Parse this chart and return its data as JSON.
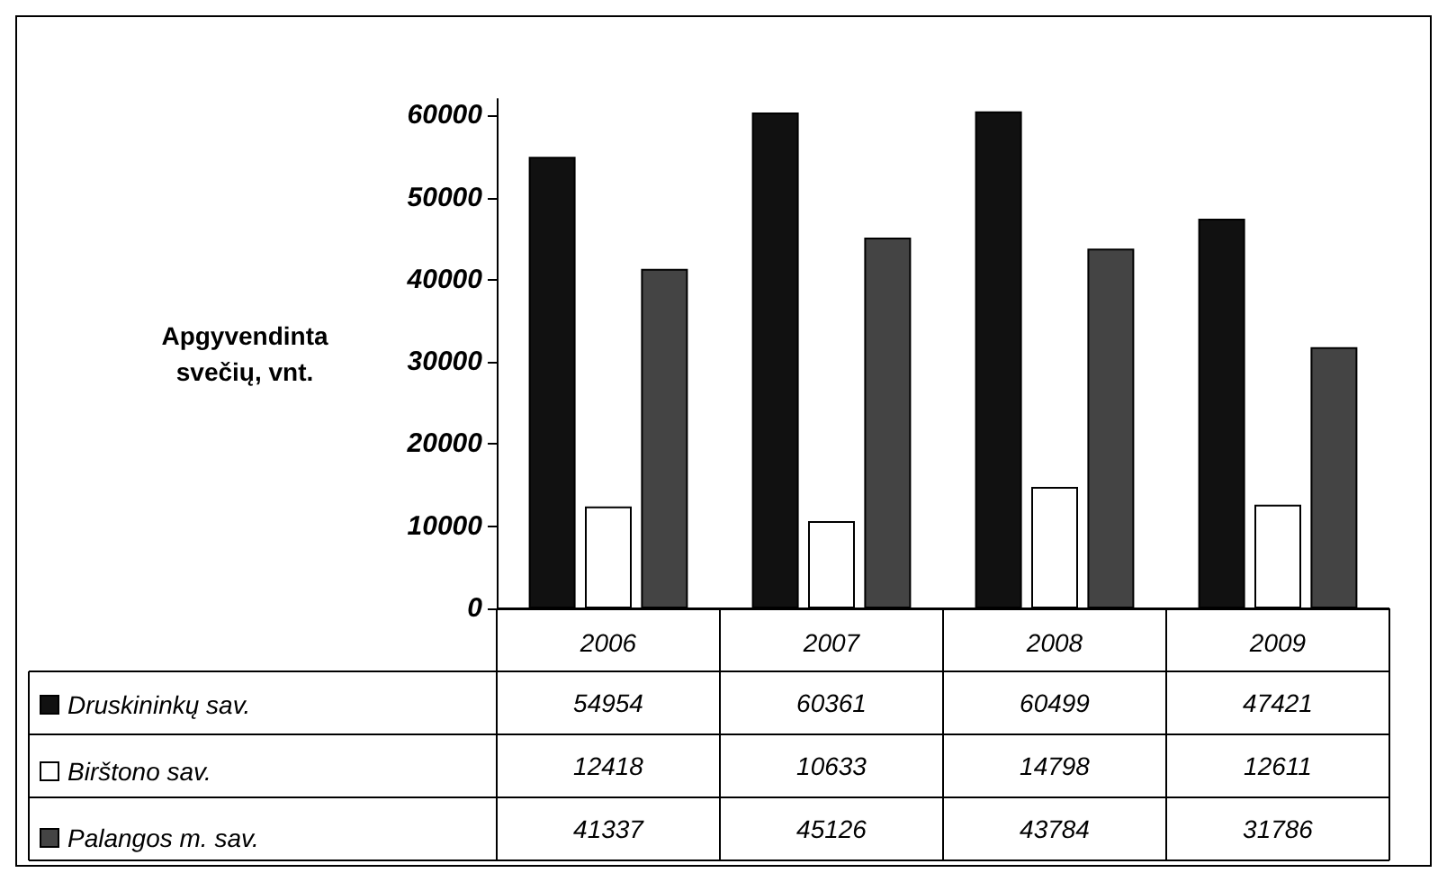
{
  "chart_data": {
    "type": "bar",
    "ylabel": "Apgyvendinta\nsvečių, vnt.",
    "categories": [
      "2006",
      "2007",
      "2008",
      "2009"
    ],
    "series": [
      {
        "name": "Druskininkų sav.",
        "color": "#111111",
        "values": [
          54954,
          60361,
          60499,
          47421
        ]
      },
      {
        "name": "Birštono sav.",
        "color": "#ffffff",
        "values": [
          12418,
          10633,
          14798,
          12611
        ]
      },
      {
        "name": "Palangos m. sav.",
        "color": "#444444",
        "values": [
          41337,
          45126,
          43784,
          31786
        ]
      }
    ],
    "ylim": [
      0,
      62000
    ],
    "yticks": [
      0,
      10000,
      20000,
      30000,
      40000,
      50000,
      60000
    ],
    "grid": false,
    "legend": "bottom left",
    "data_labels": true
  }
}
